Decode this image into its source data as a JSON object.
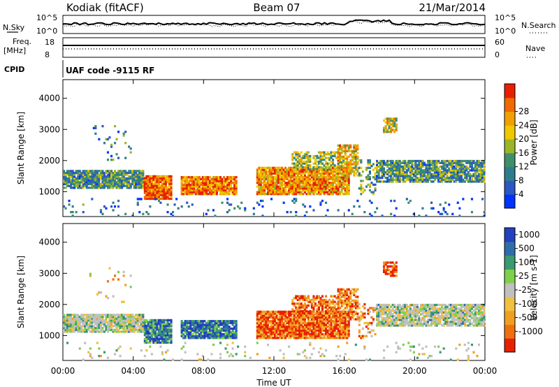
{
  "header": {
    "station": "Kodiak (fitACF)",
    "beam": "Beam 07",
    "date": "21/Mar/2014"
  },
  "top_panels": {
    "nsky_label": "N.Sky",
    "nsky_ticks": [
      "10^5",
      "10^0"
    ],
    "nsearch_label": "N.Search",
    "nsearch_ticks": [
      "10^5",
      "10^0"
    ],
    "freq_label_1": "Freq.",
    "freq_label_2": "[MHz]",
    "freq_ticks": [
      "18",
      "8"
    ],
    "nave_label": "Nave",
    "nave_ticks": [
      "60",
      "0"
    ],
    "cpid_label": "CPID",
    "cpid_text": "UAF code -9115 RF"
  },
  "chart_data": [
    {
      "type": "heatmap",
      "name": "power",
      "ylabel": "Slant Range [km]",
      "ylim": [
        200,
        4600
      ],
      "yticks": [
        "1000",
        "2000",
        "3000",
        "4000"
      ],
      "colorbar_label": "Power [dB]",
      "colorbar_ticks": [
        "4",
        "8",
        "12",
        "16",
        "20",
        "24",
        "28"
      ],
      "colorbar_colors": [
        "#0033ff",
        "#2c58c4",
        "#2e7d8e",
        "#3f8f6a",
        "#9ab52a",
        "#f0c800",
        "#f0a000",
        "#f06a00",
        "#e82000"
      ]
    },
    {
      "type": "heatmap",
      "name": "velocity",
      "ylabel": "Slant Range [km]",
      "ylim": [
        200,
        4600
      ],
      "yticks": [
        "1000",
        "2000",
        "3000",
        "4000"
      ],
      "colorbar_label": "Velocity [m s-1]",
      "colorbar_ticks": [
        "1000",
        "500",
        "100",
        "25",
        "-25",
        "-100",
        "-500",
        "-1000"
      ],
      "colorbar_colors": [
        "#2240c0",
        "#2e6ea8",
        "#3a9a70",
        "#7fd04a",
        "#c0c0c0",
        "#f0c040",
        "#f0a020",
        "#f07010",
        "#e82000"
      ]
    }
  ],
  "x_axis": {
    "label": "Time UT",
    "ticks": [
      "00:00",
      "04:00",
      "08:00",
      "12:00",
      "16:00",
      "20:00",
      "00:00"
    ],
    "xlim_hours": [
      0,
      24
    ]
  }
}
